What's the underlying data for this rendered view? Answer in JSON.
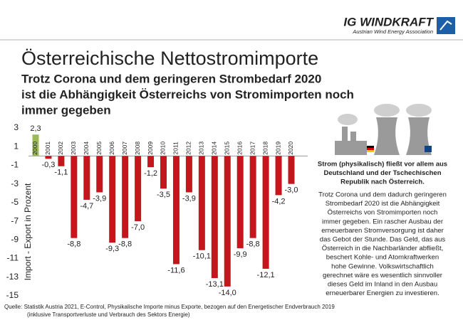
{
  "logo": {
    "name": "IG WINDKRAFT",
    "tagline": "Austrian Wind Energy Association"
  },
  "chart_data": {
    "type": "bar",
    "title": "Österreichische Nettostromimporte",
    "subtitle": [
      "Trotz Corona und dem geringeren Strombedarf 2020",
      "ist die Abhängigkeit Österreichs von Stromimporten noch",
      "immer gegeben"
    ],
    "y_label": "Import - Export in Prozent",
    "categories": [
      "2000",
      "2001",
      "2002",
      "2003",
      "2004",
      "2005",
      "2006",
      "2007",
      "2008",
      "2009",
      "2010",
      "2011",
      "2012",
      "2013",
      "2014",
      "2015",
      "2016",
      "2017",
      "2018",
      "2019",
      "2020"
    ],
    "values": [
      2.3,
      -0.3,
      -1.1,
      -8.8,
      -4.7,
      -3.9,
      -9.3,
      -8.8,
      -7.0,
      -1.2,
      -3.5,
      -11.6,
      -3.9,
      -10.1,
      -13.1,
      -14.0,
      -9.9,
      -8.8,
      -12.1,
      -4.2,
      -3.0
    ],
    "value_labels": [
      "2,3",
      "-0,3",
      "-1,1",
      "-8,8",
      "-4,7",
      "-3,9",
      "-9,3",
      "-8,8",
      "-7,0",
      "-1,2",
      "-3,5",
      "-11,6",
      "-3,9",
      "-10,1",
      "-13,1",
      "-14,0",
      "-9,9",
      "-8,8",
      "-12,1",
      "-4,2",
      "-3,0"
    ],
    "color": "#c4161c",
    "positive_color": "#9bbb59",
    "ylim": [
      -15,
      3
    ],
    "yticks": [
      3,
      1,
      -1,
      -3,
      -5,
      -7,
      -9,
      -11,
      -13,
      -15
    ]
  },
  "note": {
    "heading": [
      "Strom (physikalisch) fließt vor allem aus",
      "Deutschland und der Tschechischen",
      "Republik nach Österreich."
    ],
    "body": [
      "Trotz Corona und dem dadurch geringeren",
      "Strombedarf 2020 ist die Abhängigkeit",
      "Österreichs von Stromimporten noch",
      "immer gegeben. Ein rascher Ausbau der",
      "erneuerbaren Stromversorgung ist daher",
      "das Gebot der Stunde. Das Geld, das aus",
      "Österreich in die Nachbarländer abfließt,",
      "beschert Kohle- und Atomkraftwerken",
      "hohe Gewinne. Volkswirtschaftlich",
      "gerechnet wäre es wesentlich sinnvoller",
      "dieses Geld im Inland in den Ausbau",
      "erneuerbarer Energien zu investieren."
    ]
  },
  "source": [
    "Quelle: Statistik Austria 2021, E-Control, Physikalische Importe minus Exporte, bezogen auf den Energetischer Endverbrauch 2019",
    "(inklusive Transportverluste und Verbrauch des Sektors Energie)"
  ]
}
